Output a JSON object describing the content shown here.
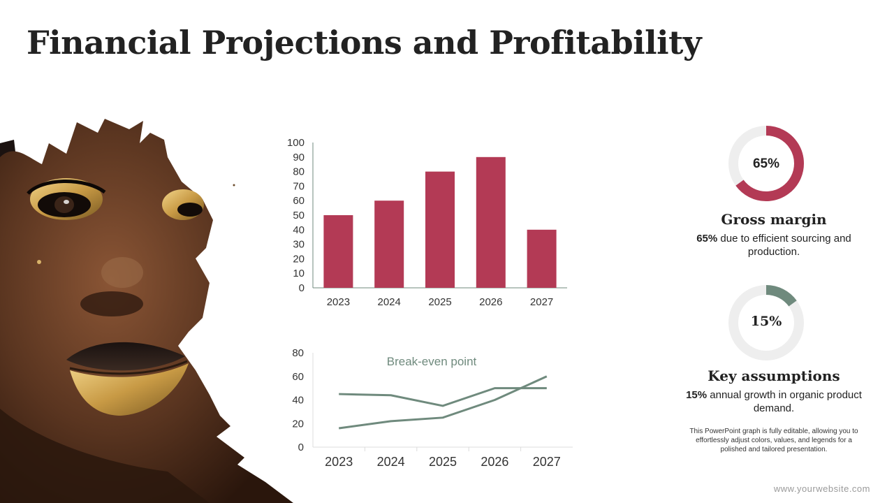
{
  "slide": {
    "title": "Financial Projections and Profitability",
    "website": "www.yourwebsite.com"
  },
  "colors": {
    "bar": "#b33a55",
    "line": "#6f8a7d",
    "donut_track": "#eeeeee",
    "donut_gross": "#b33a55",
    "donut_key": "#6f8a7d"
  },
  "chart_data": [
    {
      "type": "bar",
      "categories": [
        "2023",
        "2024",
        "2025",
        "2026",
        "2027"
      ],
      "values": [
        50,
        60,
        80,
        90,
        40
      ],
      "ylim": [
        0,
        100
      ],
      "yticks": [
        0,
        10,
        20,
        30,
        40,
        50,
        60,
        70,
        80,
        90,
        100
      ]
    },
    {
      "type": "line",
      "title": "Break-even point",
      "categories": [
        "2023",
        "2024",
        "2025",
        "2026",
        "2027"
      ],
      "series": [
        {
          "values": [
            45,
            44,
            35,
            50,
            50
          ]
        },
        {
          "values": [
            16,
            22,
            25,
            40,
            60
          ]
        }
      ],
      "ylim": [
        0,
        80
      ],
      "yticks": [
        0,
        20,
        40,
        60,
        80
      ]
    }
  ],
  "kpis": {
    "gross": {
      "percent": "65%",
      "value": 0.65,
      "heading": "Gross margin",
      "bold": "65%",
      "text": " due to efficient sourcing and production."
    },
    "key": {
      "percent": "15%",
      "value": 0.15,
      "heading": "Key assumptions",
      "bold": "15%",
      "text": " annual growth in organic product demand."
    }
  },
  "note": "This PowerPoint graph is fully editable, allowing you to effortlessly adjust colors, values, and legends for a polished and tailored presentation."
}
